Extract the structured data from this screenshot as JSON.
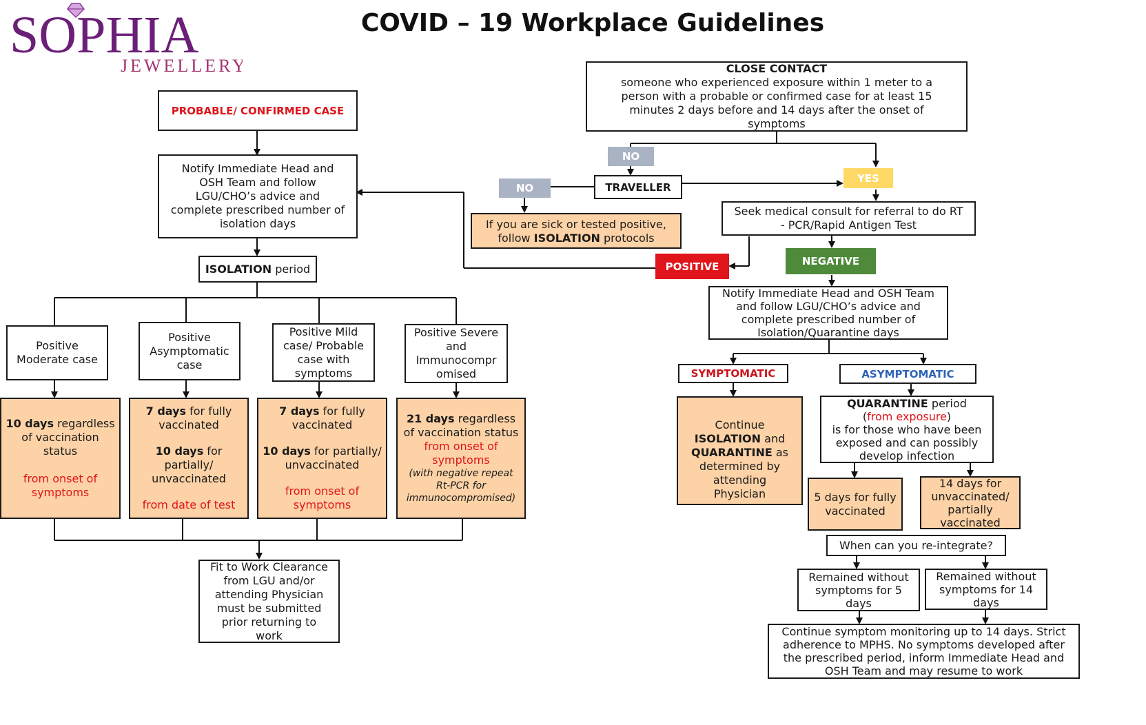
{
  "title": "COVID – 19 Workplace Guidelines",
  "logo": {
    "brand": "SOPHIA",
    "sub": "JEWELLERY"
  },
  "colors": {
    "peach": "#fcd2a6",
    "red": "#e0141b",
    "green": "#4e8a3a",
    "gray": "#a9b3c3",
    "yellow": "#ffd966",
    "blue": "#2f63b8",
    "purple": "#6b1f78"
  },
  "left": {
    "probable": "PROBABLE/ CONFIRMED CASE",
    "notify": "Notify Immediate Head and OSH Team and follow LGU/CHO’s advice and complete prescribed number of isolation days",
    "isolation": {
      "bold": "ISOLATION",
      "rest": " period"
    },
    "categories": [
      "Positive Moderate case",
      "Positive Asymptomatic case",
      "Positive Mild case/ Probable case with symptoms",
      "Positive Severe and Immunocompr omised"
    ],
    "outcomes": [
      {
        "bold": "10 days",
        "rest": " regardless of vaccination status",
        "red": "from onset of symptoms"
      },
      {
        "bold1": "7 days",
        "rest1": " for fully vaccinated",
        "bold2": "10 days",
        "rest2": " for partially/ unvaccinated",
        "red": "from date of test"
      },
      {
        "bold1": "7 days",
        "rest1": " for fully vaccinated",
        "bold2": "10 days",
        "rest2": "  for partially/ unvaccinated",
        "red": "from onset of symptoms"
      },
      {
        "bold": "21 days",
        "rest": " regardless of vaccination status",
        "red": "from onset of symptoms",
        "italic": "(with negative repeat Rt-PCR for immunocompromised)"
      }
    ],
    "fit": "Fit to Work Clearance from LGU and/or attending Physician must be submitted prior returning to work"
  },
  "right": {
    "close_contact": {
      "title": "CLOSE CONTACT",
      "text": "someone who experienced exposure within 1 meter to a person with a probable or confirmed case for at least 15 minutes  2 days before and 14 days after the onset of symptoms"
    },
    "no_top": "NO",
    "no_left": "NO",
    "yes": "YES",
    "traveller": "TRAVELLER",
    "sick": {
      "pre": "If you are sick or tested positive, follow ",
      "bold": "ISOLATION",
      "post": " protocols"
    },
    "seek": "Seek medical consult for referral to do RT - PCR/Rapid Antigen Test",
    "positive": "POSITIVE",
    "negative": "NEGATIVE",
    "notify": "Notify Immediate Head and OSH Team and follow LGU/CHO’s advice and complete prescribed number of Isolation/Quarantine days",
    "symptomatic": "SYMPTOMATIC",
    "asymptomatic": "ASYMPTOMATIC",
    "continue": {
      "pre": "Continue ",
      "bold1": "ISOLATION",
      "mid": " and ",
      "bold2": "QUARANTINE",
      "post": " as determined by attending Physician"
    },
    "quarantine": {
      "bold": "QUARANTINE",
      "rest": " period",
      "red_open": "(",
      "red": "from exposure",
      "red_close": ")",
      "text": "is for those who have been exposed and can possibly develop infection"
    },
    "five_days": "5 days for fully vaccinated",
    "fourteen_days": "14 days for unvaccinated/ partially vaccinated",
    "reintegrate": "When can you re-integrate?",
    "remained5": "Remained without symptoms for 5 days",
    "remained14": "Remained without symptoms for 14 days",
    "continue_monitor": "Continue symptom monitoring up to 14 days. Strict adherence to MPHS. No symptoms developed after the prescribed period, inform Immediate Head and OSH Team and may resume to work"
  }
}
